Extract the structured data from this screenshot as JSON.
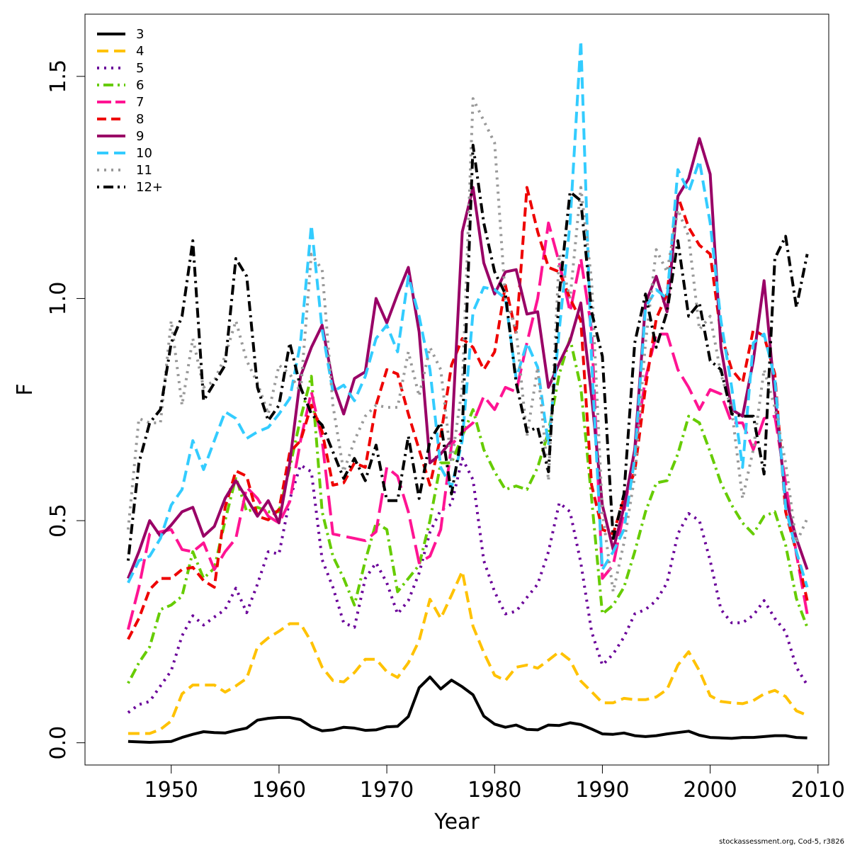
{
  "footer_text": "stockassessment.org, Cod-5, r3826",
  "chart_data": {
    "type": "line",
    "title": "",
    "xlabel": "Year",
    "ylabel": "F",
    "xlim": [
      1942,
      2011
    ],
    "ylim": [
      -0.05,
      1.64
    ],
    "xticks": [
      1950,
      1960,
      1970,
      1980,
      1990,
      2000,
      2010
    ],
    "yticks": [
      0.0,
      0.5,
      1.0,
      1.5
    ],
    "ytick_labels": [
      "0.0",
      "0.5",
      "1.0",
      "1.5"
    ],
    "legend_position": "top-left",
    "grid": false,
    "x": [
      1946,
      1947,
      1948,
      1949,
      1950,
      1951,
      1952,
      1953,
      1954,
      1955,
      1956,
      1957,
      1958,
      1959,
      1960,
      1961,
      1962,
      1963,
      1964,
      1965,
      1966,
      1967,
      1968,
      1969,
      1970,
      1971,
      1972,
      1973,
      1974,
      1975,
      1976,
      1977,
      1978,
      1979,
      1980,
      1981,
      1982,
      1983,
      1984,
      1985,
      1986,
      1987,
      1988,
      1989,
      1990,
      1991,
      1992,
      1993,
      1994,
      1995,
      1996,
      1997,
      1998,
      1999,
      2000,
      2001,
      2002,
      2003,
      2004,
      2005,
      2006,
      2007,
      2008,
      2009
    ],
    "series": [
      {
        "name": "3",
        "color": "#000000",
        "dash": "solid",
        "values": [
          0.003,
          0.002,
          0.001,
          0.002,
          0.003,
          0.012,
          0.019,
          0.025,
          0.023,
          0.022,
          0.028,
          0.033,
          0.051,
          0.055,
          0.057,
          0.057,
          0.052,
          0.036,
          0.027,
          0.029,
          0.035,
          0.033,
          0.028,
          0.029,
          0.036,
          0.037,
          0.059,
          0.124,
          0.148,
          0.121,
          0.141,
          0.126,
          0.108,
          0.06,
          0.042,
          0.035,
          0.04,
          0.03,
          0.029,
          0.04,
          0.039,
          0.045,
          0.041,
          0.031,
          0.02,
          0.019,
          0.022,
          0.016,
          0.014,
          0.016,
          0.02,
          0.023,
          0.026,
          0.017,
          0.012,
          0.011,
          0.01,
          0.012,
          0.012,
          0.014,
          0.016,
          0.016,
          0.012,
          0.011
        ]
      },
      {
        "name": "4",
        "color": "#ffc200",
        "dash": "longdash",
        "values": [
          0.021,
          0.021,
          0.021,
          0.03,
          0.049,
          0.11,
          0.13,
          0.13,
          0.13,
          0.114,
          0.128,
          0.145,
          0.216,
          0.236,
          0.251,
          0.268,
          0.268,
          0.227,
          0.17,
          0.14,
          0.137,
          0.158,
          0.188,
          0.188,
          0.16,
          0.147,
          0.18,
          0.23,
          0.323,
          0.28,
          0.332,
          0.386,
          0.262,
          0.203,
          0.152,
          0.14,
          0.17,
          0.175,
          0.168,
          0.186,
          0.205,
          0.186,
          0.139,
          0.115,
          0.09,
          0.09,
          0.1,
          0.097,
          0.097,
          0.103,
          0.12,
          0.175,
          0.205,
          0.162,
          0.106,
          0.093,
          0.09,
          0.088,
          0.095,
          0.11,
          0.118,
          0.104,
          0.072,
          0.062
        ]
      },
      {
        "name": "5",
        "color": "#6a0099",
        "dash": "dotted",
        "values": [
          0.068,
          0.086,
          0.093,
          0.128,
          0.162,
          0.241,
          0.286,
          0.265,
          0.283,
          0.3,
          0.348,
          0.293,
          0.357,
          0.43,
          0.425,
          0.548,
          0.625,
          0.61,
          0.412,
          0.35,
          0.27,
          0.26,
          0.37,
          0.405,
          0.36,
          0.29,
          0.32,
          0.382,
          0.474,
          0.524,
          0.537,
          0.64,
          0.592,
          0.41,
          0.34,
          0.29,
          0.296,
          0.327,
          0.357,
          0.43,
          0.54,
          0.52,
          0.405,
          0.25,
          0.175,
          0.2,
          0.238,
          0.29,
          0.3,
          0.32,
          0.36,
          0.47,
          0.516,
          0.5,
          0.41,
          0.3,
          0.27,
          0.27,
          0.287,
          0.32,
          0.28,
          0.25,
          0.17,
          0.13
        ]
      },
      {
        "name": "6",
        "color": "#66cc00",
        "dash": "dotdash",
        "values": [
          0.134,
          0.18,
          0.216,
          0.3,
          0.31,
          0.33,
          0.43,
          0.37,
          0.393,
          0.5,
          0.598,
          0.52,
          0.53,
          0.52,
          0.52,
          0.62,
          0.73,
          0.825,
          0.52,
          0.42,
          0.37,
          0.31,
          0.41,
          0.495,
          0.48,
          0.34,
          0.37,
          0.4,
          0.5,
          0.63,
          0.63,
          0.69,
          0.75,
          0.66,
          0.61,
          0.57,
          0.578,
          0.57,
          0.62,
          0.7,
          0.83,
          0.91,
          0.8,
          0.55,
          0.29,
          0.31,
          0.35,
          0.43,
          0.52,
          0.585,
          0.59,
          0.65,
          0.735,
          0.72,
          0.655,
          0.585,
          0.535,
          0.495,
          0.47,
          0.51,
          0.52,
          0.445,
          0.325,
          0.26
        ]
      },
      {
        "name": "7",
        "color": "#ff1493",
        "dash": "verylongdash",
        "values": [
          0.255,
          0.35,
          0.47,
          0.475,
          0.48,
          0.435,
          0.43,
          0.45,
          0.39,
          0.43,
          0.46,
          0.575,
          0.55,
          0.51,
          0.495,
          0.543,
          0.68,
          0.79,
          0.68,
          0.47,
          0.465,
          0.46,
          0.455,
          0.475,
          0.62,
          0.6,
          0.52,
          0.405,
          0.42,
          0.48,
          0.67,
          0.7,
          0.72,
          0.78,
          0.75,
          0.8,
          0.79,
          0.9,
          1.0,
          1.17,
          1.08,
          0.97,
          1.09,
          0.93,
          0.37,
          0.4,
          0.52,
          0.66,
          0.82,
          0.92,
          0.92,
          0.84,
          0.8,
          0.75,
          0.795,
          0.785,
          0.72,
          0.72,
          0.66,
          0.73,
          0.735,
          0.585,
          0.425,
          0.29
        ]
      },
      {
        "name": "8",
        "color": "#ee0000",
        "dash": "dashed",
        "values": [
          0.233,
          0.28,
          0.345,
          0.37,
          0.37,
          0.39,
          0.395,
          0.365,
          0.35,
          0.53,
          0.612,
          0.6,
          0.51,
          0.502,
          0.525,
          0.654,
          0.68,
          0.76,
          0.7,
          0.58,
          0.585,
          0.63,
          0.62,
          0.76,
          0.84,
          0.83,
          0.74,
          0.66,
          0.58,
          0.69,
          0.85,
          0.91,
          0.89,
          0.84,
          0.88,
          1.03,
          0.92,
          1.25,
          1.15,
          1.07,
          1.06,
          1.0,
          0.95,
          0.58,
          0.48,
          0.47,
          0.55,
          0.61,
          0.8,
          0.955,
          1.01,
          1.23,
          1.16,
          1.12,
          1.1,
          0.92,
          0.84,
          0.81,
          0.93,
          0.915,
          0.83,
          0.52,
          0.43,
          0.32
        ]
      },
      {
        "name": "9",
        "color": "#990066",
        "dash": "solid",
        "values": [
          0.37,
          0.43,
          0.5,
          0.465,
          0.49,
          0.52,
          0.53,
          0.465,
          0.487,
          0.55,
          0.59,
          0.55,
          0.51,
          0.545,
          0.495,
          0.63,
          0.825,
          0.89,
          0.94,
          0.81,
          0.74,
          0.82,
          0.835,
          1.0,
          0.945,
          1.01,
          1.07,
          0.925,
          0.63,
          0.65,
          0.68,
          1.15,
          1.25,
          1.08,
          1.01,
          1.06,
          1.065,
          0.965,
          0.97,
          0.8,
          0.855,
          0.905,
          0.99,
          0.78,
          0.535,
          0.435,
          0.53,
          0.66,
          0.99,
          1.05,
          0.97,
          1.23,
          1.27,
          1.36,
          1.28,
          0.89,
          0.75,
          0.735,
          0.86,
          1.04,
          0.78,
          0.55,
          0.46,
          0.39
        ]
      },
      {
        "name": "10",
        "color": "#33ccff",
        "dash": "longdash",
        "values": [
          0.36,
          0.41,
          0.42,
          0.46,
          0.535,
          0.57,
          0.68,
          0.615,
          0.68,
          0.745,
          0.73,
          0.685,
          0.7,
          0.71,
          0.74,
          0.775,
          0.9,
          1.165,
          0.93,
          0.79,
          0.805,
          0.77,
          0.825,
          0.91,
          0.94,
          0.88,
          1.05,
          0.96,
          0.84,
          0.62,
          0.575,
          0.68,
          0.97,
          1.025,
          1.02,
          1.0,
          0.82,
          0.9,
          0.845,
          0.67,
          0.93,
          1.17,
          1.58,
          0.86,
          0.39,
          0.43,
          0.48,
          0.64,
          0.98,
          1.02,
          1.0,
          1.29,
          1.24,
          1.31,
          1.17,
          0.95,
          0.8,
          0.62,
          0.9,
          0.92,
          0.82,
          0.53,
          0.43,
          0.35
        ]
      },
      {
        "name": "11",
        "color": "#999999",
        "dash": "dotted",
        "values": [
          0.48,
          0.73,
          0.72,
          0.72,
          0.95,
          0.76,
          0.91,
          0.8,
          0.815,
          0.87,
          0.95,
          0.86,
          0.81,
          0.74,
          0.85,
          0.83,
          0.79,
          1.1,
          1.065,
          0.76,
          0.61,
          0.68,
          0.735,
          0.76,
          0.755,
          0.755,
          0.88,
          0.78,
          0.89,
          0.84,
          0.63,
          0.8,
          1.45,
          1.4,
          1.35,
          1.0,
          0.93,
          0.69,
          0.845,
          0.59,
          1.1,
          1.0,
          1.25,
          1.04,
          0.52,
          0.34,
          0.45,
          0.6,
          0.9,
          1.11,
          1.06,
          1.2,
          1.14,
          0.93,
          0.96,
          0.83,
          0.75,
          0.55,
          0.66,
          0.84,
          0.755,
          0.63,
          0.45,
          0.505
        ]
      },
      {
        "name": "12+",
        "color": "#000000",
        "dash": "dotdash",
        "values": [
          0.41,
          0.63,
          0.72,
          0.75,
          0.9,
          0.96,
          1.13,
          0.77,
          0.81,
          0.85,
          1.09,
          1.05,
          0.8,
          0.725,
          0.76,
          0.9,
          0.8,
          0.74,
          0.715,
          0.655,
          0.595,
          0.64,
          0.59,
          0.67,
          0.545,
          0.545,
          0.69,
          0.55,
          0.68,
          0.72,
          0.56,
          0.7,
          1.345,
          1.17,
          1.06,
          1.01,
          0.81,
          0.7,
          0.71,
          0.61,
          1.01,
          1.24,
          1.22,
          0.97,
          0.87,
          0.46,
          0.56,
          0.9,
          1.01,
          0.89,
          0.97,
          1.13,
          0.96,
          0.99,
          0.86,
          0.84,
          0.74,
          0.735,
          0.735,
          0.605,
          1.09,
          1.14,
          0.98,
          1.1
        ]
      }
    ]
  }
}
